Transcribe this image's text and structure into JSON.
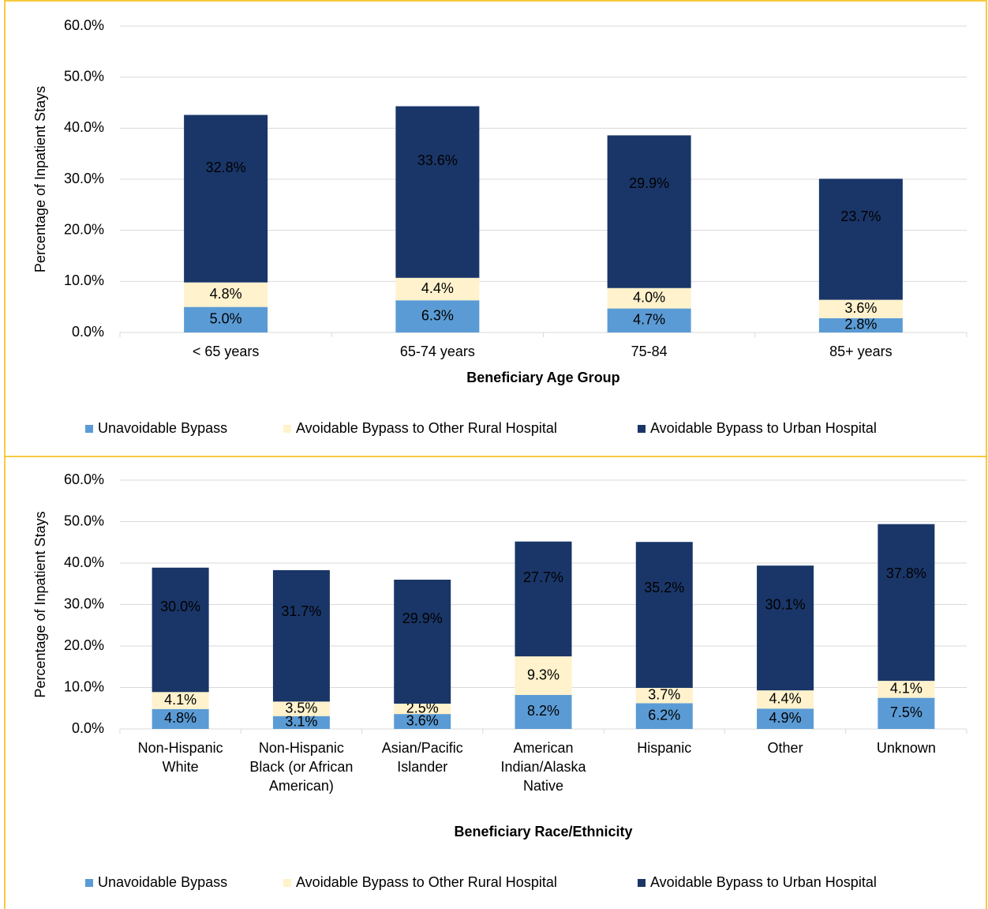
{
  "chart_data": [
    {
      "type": "bar",
      "stacked": true,
      "x_label": "Beneficiary Age Group",
      "y_label": "Percentage of Inpatient Stays",
      "categories": [
        "< 65 years",
        "65-74 years",
        "75-84",
        "85+ years"
      ],
      "series": [
        {
          "name": "Unavoidable Bypass",
          "color": "#5b9bd5",
          "values": [
            5.0,
            6.3,
            4.7,
            2.8
          ],
          "value_labels": [
            "5.0%",
            "6.3%",
            "4.7%",
            "2.8%"
          ]
        },
        {
          "name": "Avoidable Bypass to Other Rural Hospital",
          "color": "#fff2cc",
          "values": [
            4.8,
            4.4,
            4.0,
            3.6
          ],
          "value_labels": [
            "4.8%",
            "4.4%",
            "4.0%",
            "3.6%"
          ]
        },
        {
          "name": "Avoidable Bypass to Urban Hospital",
          "color": "#1a3668",
          "values": [
            32.8,
            33.6,
            29.9,
            23.7
          ],
          "value_labels": [
            "32.8%",
            "33.6%",
            "29.9%",
            "23.7%"
          ]
        }
      ],
      "ylim": [
        0,
        60
      ],
      "yticks": [
        {
          "value": 0,
          "label": "0.0%"
        },
        {
          "value": 10,
          "label": "10.0%"
        },
        {
          "value": 20,
          "label": "20.0%"
        },
        {
          "value": 30,
          "label": "30.0%"
        },
        {
          "value": 40,
          "label": "40.0%"
        },
        {
          "value": 50,
          "label": "50.0%"
        },
        {
          "value": 60,
          "label": "60.0%"
        }
      ],
      "grid": true,
      "legend": "bottom"
    },
    {
      "type": "bar",
      "stacked": true,
      "x_label": "Beneficiary Race/Ethnicity",
      "y_label": "Percentage of Inpatient Stays",
      "categories": [
        "Non-Hispanic White",
        "Non-Hispanic Black (or African American)",
        "Asian/Pacific Islander",
        "American Indian/Alaska Native",
        "Hispanic",
        "Other",
        "Unknown"
      ],
      "series": [
        {
          "name": "Unavoidable Bypass",
          "color": "#5b9bd5",
          "values": [
            4.8,
            3.1,
            3.6,
            8.2,
            6.2,
            4.9,
            7.5
          ],
          "value_labels": [
            "4.8%",
            "3.1%",
            "3.6%",
            "8.2%",
            "6.2%",
            "4.9%",
            "7.5%"
          ]
        },
        {
          "name": "Avoidable Bypass to Other Rural Hospital",
          "color": "#fff2cc",
          "values": [
            4.1,
            3.5,
            2.5,
            9.3,
            3.7,
            4.4,
            4.1
          ],
          "value_labels": [
            "4.1%",
            "3.5%",
            "2.5%",
            "9.3%",
            "3.7%",
            "4.4%",
            "4.1%"
          ]
        },
        {
          "name": "Avoidable Bypass to Urban Hospital",
          "color": "#1a3668",
          "values": [
            30.0,
            31.7,
            29.9,
            27.7,
            35.2,
            30.1,
            37.8
          ],
          "value_labels": [
            "30.0%",
            "31.7%",
            "29.9%",
            "27.7%",
            "35.2%",
            "30.1%",
            "37.8%"
          ]
        }
      ],
      "ylim": [
        0,
        60
      ],
      "yticks": [
        {
          "value": 0,
          "label": "0.0%"
        },
        {
          "value": 10,
          "label": "10.0%"
        },
        {
          "value": 20,
          "label": "20.0%"
        },
        {
          "value": 30,
          "label": "30.0%"
        },
        {
          "value": 40,
          "label": "40.0%"
        },
        {
          "value": 50,
          "label": "50.0%"
        },
        {
          "value": 60,
          "label": "60.0%"
        }
      ],
      "grid": true,
      "legend": "bottom"
    }
  ]
}
